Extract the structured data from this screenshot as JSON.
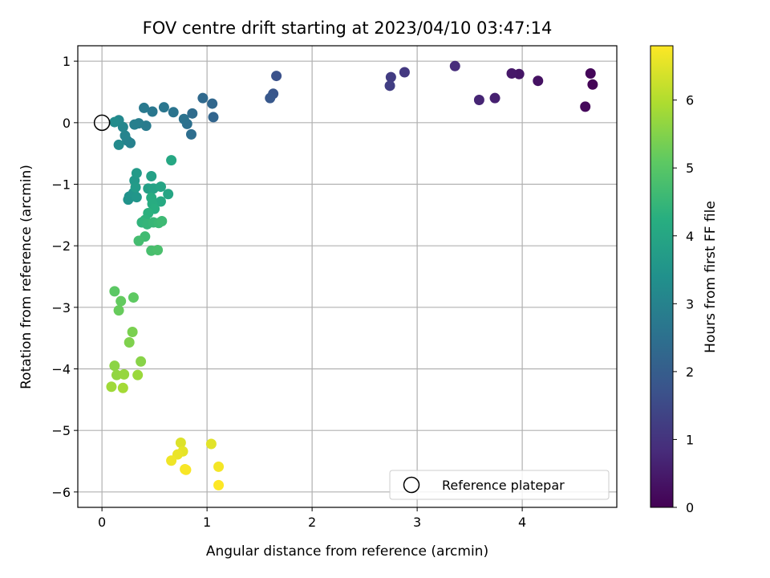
{
  "chart_data": {
    "type": "scatter",
    "title": "FOV centre drift starting at 2023/04/10 03:47:14",
    "xlabel": "Angular distance from reference (arcmin)",
    "ylabel": "Rotation from reference (arcmin)",
    "xlim": [
      -0.23,
      4.9
    ],
    "ylim": [
      -6.25,
      1.25
    ],
    "xticks": [
      0,
      1,
      2,
      3,
      4
    ],
    "yticks": [
      1,
      0,
      -1,
      -2,
      -3,
      -4,
      -5,
      -6
    ],
    "grid": true,
    "colormap": "viridis",
    "colorbar": {
      "label": "Hours from first FF file",
      "range": [
        0,
        6.8
      ],
      "ticks": [
        0,
        1,
        2,
        3,
        4,
        5,
        6
      ]
    },
    "reference_point": {
      "x": 0,
      "y": 0
    },
    "legend": {
      "label": "Reference platepar",
      "position": "lower-right"
    },
    "points": [
      {
        "x": 4.67,
        "y": 0.62,
        "c": 0.05
      },
      {
        "x": 4.65,
        "y": 0.8,
        "c": 0.1
      },
      {
        "x": 4.6,
        "y": 0.26,
        "c": 0.15
      },
      {
        "x": 4.15,
        "y": 0.68,
        "c": 0.3
      },
      {
        "x": 3.97,
        "y": 0.79,
        "c": 0.4
      },
      {
        "x": 3.9,
        "y": 0.8,
        "c": 0.45
      },
      {
        "x": 3.74,
        "y": 0.4,
        "c": 0.6
      },
      {
        "x": 3.59,
        "y": 0.37,
        "c": 0.7
      },
      {
        "x": 3.36,
        "y": 0.92,
        "c": 0.85
      },
      {
        "x": 2.88,
        "y": 0.82,
        "c": 1.1
      },
      {
        "x": 2.75,
        "y": 0.74,
        "c": 1.2
      },
      {
        "x": 2.74,
        "y": 0.6,
        "c": 1.25
      },
      {
        "x": 1.66,
        "y": 0.76,
        "c": 1.7
      },
      {
        "x": 1.63,
        "y": 0.47,
        "c": 1.8
      },
      {
        "x": 1.6,
        "y": 0.4,
        "c": 1.85
      },
      {
        "x": 1.06,
        "y": 0.09,
        "c": 2.2
      },
      {
        "x": 1.05,
        "y": 0.31,
        "c": 2.25
      },
      {
        "x": 0.96,
        "y": 0.4,
        "c": 2.3
      },
      {
        "x": 0.86,
        "y": 0.15,
        "c": 2.4
      },
      {
        "x": 0.85,
        "y": -0.19,
        "c": 2.45
      },
      {
        "x": 0.81,
        "y": -0.02,
        "c": 2.5
      },
      {
        "x": 0.78,
        "y": 0.06,
        "c": 2.55
      },
      {
        "x": 0.68,
        "y": 0.17,
        "c": 2.6
      },
      {
        "x": 0.59,
        "y": 0.25,
        "c": 2.65
      },
      {
        "x": 0.48,
        "y": 0.18,
        "c": 2.7
      },
      {
        "x": 0.4,
        "y": 0.24,
        "c": 2.75
      },
      {
        "x": 0.42,
        "y": -0.05,
        "c": 2.8
      },
      {
        "x": 0.35,
        "y": -0.01,
        "c": 2.85
      },
      {
        "x": 0.31,
        "y": -0.03,
        "c": 2.9
      },
      {
        "x": 0.27,
        "y": -0.33,
        "c": 2.95
      },
      {
        "x": 0.24,
        "y": -0.29,
        "c": 3.0
      },
      {
        "x": 0.22,
        "y": -0.21,
        "c": 3.05
      },
      {
        "x": 0.2,
        "y": -0.07,
        "c": 3.1
      },
      {
        "x": 0.16,
        "y": 0.04,
        "c": 3.15
      },
      {
        "x": 0.16,
        "y": -0.36,
        "c": 3.2
      },
      {
        "x": 0.12,
        "y": 0.01,
        "c": 3.25
      },
      {
        "x": 0.26,
        "y": -1.2,
        "c": 3.4
      },
      {
        "x": 0.25,
        "y": -1.25,
        "c": 3.45
      },
      {
        "x": 0.3,
        "y": -1.14,
        "c": 3.5
      },
      {
        "x": 0.33,
        "y": -1.21,
        "c": 3.55
      },
      {
        "x": 0.31,
        "y": -0.94,
        "c": 3.6
      },
      {
        "x": 0.33,
        "y": -0.82,
        "c": 3.65
      },
      {
        "x": 0.32,
        "y": -1.05,
        "c": 3.7
      },
      {
        "x": 0.44,
        "y": -1.07,
        "c": 3.8
      },
      {
        "x": 0.47,
        "y": -0.87,
        "c": 3.85
      },
      {
        "x": 0.49,
        "y": -1.07,
        "c": 3.9
      },
      {
        "x": 0.56,
        "y": -1.04,
        "c": 3.95
      },
      {
        "x": 0.63,
        "y": -1.16,
        "c": 4.0
      },
      {
        "x": 0.66,
        "y": -0.61,
        "c": 4.05
      },
      {
        "x": 0.56,
        "y": -1.28,
        "c": 4.1
      },
      {
        "x": 0.47,
        "y": -1.22,
        "c": 4.15
      },
      {
        "x": 0.48,
        "y": -1.32,
        "c": 4.2
      },
      {
        "x": 0.5,
        "y": -1.4,
        "c": 4.25
      },
      {
        "x": 0.44,
        "y": -1.47,
        "c": 4.3
      },
      {
        "x": 0.41,
        "y": -1.58,
        "c": 4.35
      },
      {
        "x": 0.38,
        "y": -1.62,
        "c": 4.4
      },
      {
        "x": 0.43,
        "y": -1.65,
        "c": 4.45
      },
      {
        "x": 0.49,
        "y": -1.62,
        "c": 4.5
      },
      {
        "x": 0.54,
        "y": -1.63,
        "c": 4.55
      },
      {
        "x": 0.57,
        "y": -1.6,
        "c": 4.6
      },
      {
        "x": 0.41,
        "y": -1.85,
        "c": 4.65
      },
      {
        "x": 0.35,
        "y": -1.92,
        "c": 4.7
      },
      {
        "x": 0.47,
        "y": -2.08,
        "c": 4.75
      },
      {
        "x": 0.53,
        "y": -2.07,
        "c": 4.8
      },
      {
        "x": 0.12,
        "y": -2.74,
        "c": 5.05
      },
      {
        "x": 0.3,
        "y": -2.84,
        "c": 5.1
      },
      {
        "x": 0.18,
        "y": -2.9,
        "c": 5.15
      },
      {
        "x": 0.16,
        "y": -3.05,
        "c": 5.2
      },
      {
        "x": 0.29,
        "y": -3.4,
        "c": 5.4
      },
      {
        "x": 0.26,
        "y": -3.57,
        "c": 5.45
      },
      {
        "x": 0.37,
        "y": -3.88,
        "c": 5.55
      },
      {
        "x": 0.12,
        "y": -3.95,
        "c": 5.6
      },
      {
        "x": 0.14,
        "y": -4.1,
        "c": 5.65
      },
      {
        "x": 0.21,
        "y": -4.09,
        "c": 5.7
      },
      {
        "x": 0.34,
        "y": -4.1,
        "c": 5.75
      },
      {
        "x": 0.09,
        "y": -4.29,
        "c": 5.8
      },
      {
        "x": 0.2,
        "y": -4.31,
        "c": 5.85
      },
      {
        "x": 0.75,
        "y": -5.2,
        "c": 6.45
      },
      {
        "x": 1.04,
        "y": -5.22,
        "c": 6.5
      },
      {
        "x": 0.77,
        "y": -5.34,
        "c": 6.55
      },
      {
        "x": 0.72,
        "y": -5.39,
        "c": 6.6
      },
      {
        "x": 0.66,
        "y": -5.49,
        "c": 6.65
      },
      {
        "x": 1.11,
        "y": -5.59,
        "c": 6.7
      },
      {
        "x": 0.79,
        "y": -5.63,
        "c": 6.7
      },
      {
        "x": 0.8,
        "y": -5.64,
        "c": 6.75
      },
      {
        "x": 1.11,
        "y": -5.89,
        "c": 6.8
      }
    ]
  }
}
